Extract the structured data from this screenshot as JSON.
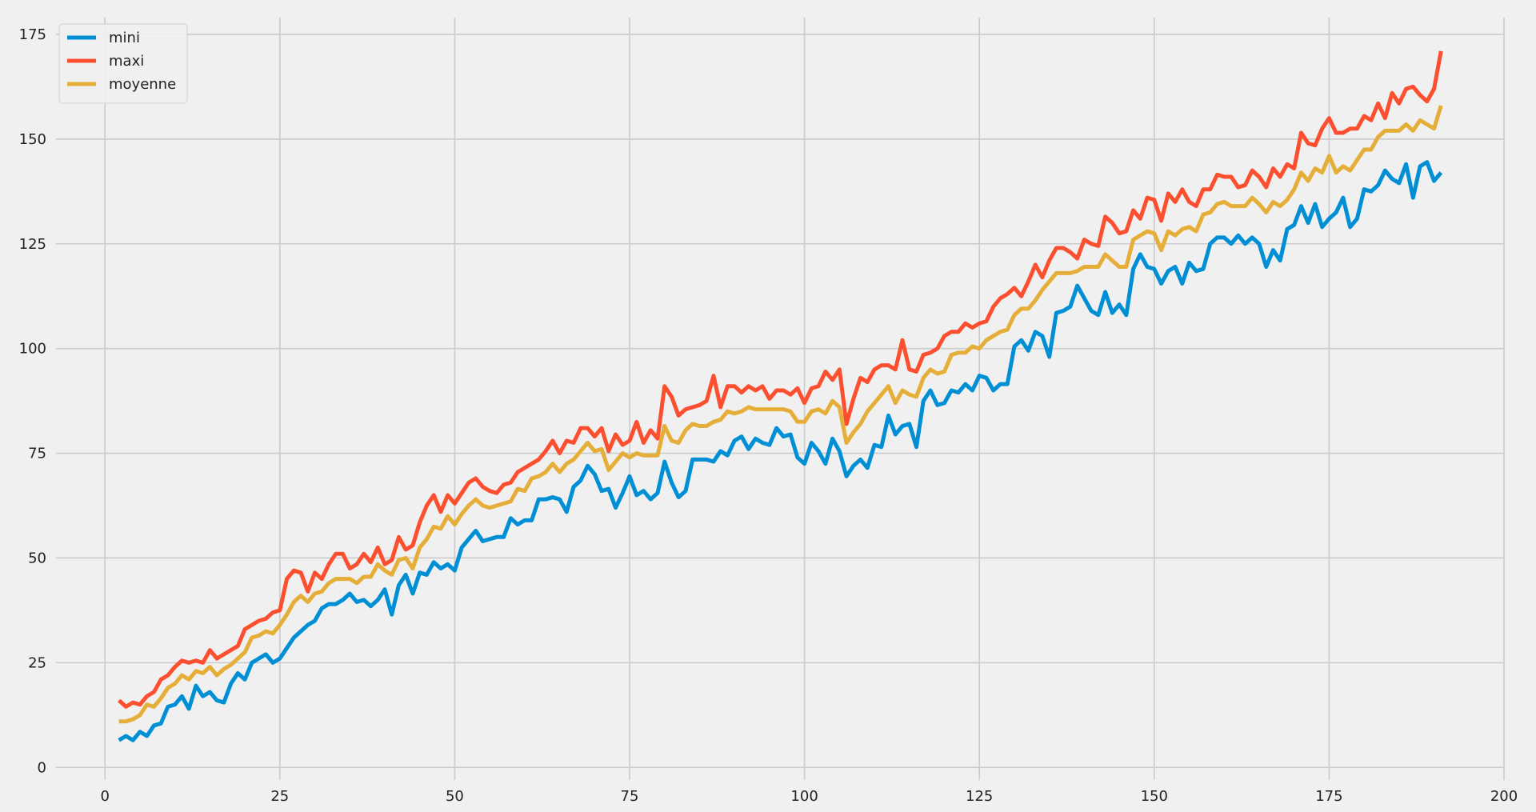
{
  "chart_data": {
    "type": "line",
    "title": "",
    "xlabel": "",
    "ylabel": "",
    "xlim": [
      -7,
      200
    ],
    "ylim": [
      -3,
      179
    ],
    "x_ticks": [
      0,
      25,
      50,
      75,
      100,
      125,
      150,
      175,
      200
    ],
    "y_ticks": [
      0,
      25,
      50,
      75,
      100,
      125,
      150,
      175
    ],
    "grid": true,
    "legend_position": "top-left",
    "x_start": 2,
    "series": [
      {
        "name": "mini",
        "color": "#008fd5",
        "values": [
          6.5,
          7.5,
          6.5,
          8.5,
          7.5,
          10,
          10.5,
          14.5,
          15,
          17,
          14,
          19.5,
          17,
          18,
          16,
          15.5,
          20,
          22.5,
          21,
          25,
          26,
          27,
          25,
          26,
          28.5,
          31,
          32.5,
          34,
          35,
          38,
          39,
          39,
          40,
          41.5,
          39.5,
          40,
          38.5,
          40,
          42.5,
          36.5,
          43.5,
          46,
          41.5,
          46.5,
          46,
          49,
          47.5,
          48.5,
          47,
          52.5,
          54.5,
          56.5,
          54,
          54.5,
          55,
          55,
          59.5,
          58,
          59,
          59,
          64,
          64,
          64.5,
          64,
          61,
          67,
          68.5,
          72,
          70,
          66,
          66.5,
          62,
          65.5,
          69.5,
          65,
          66,
          64,
          65.5,
          73,
          68,
          64.5,
          66,
          73.5,
          73.5,
          73.5,
          73,
          75.5,
          74.5,
          78,
          79,
          76,
          78.5,
          77.5,
          77,
          81,
          79,
          79.5,
          74,
          72.5,
          77.5,
          75.5,
          72.5,
          78.5,
          75.5,
          69.5,
          72,
          73.5,
          71.5,
          77,
          76.5,
          84,
          79.5,
          81.5,
          82,
          76.5,
          87.5,
          90,
          86.5,
          87,
          90,
          89.5,
          91.5,
          90,
          93.5,
          93,
          90,
          91.5,
          91.5,
          100.5,
          102,
          99.5,
          104,
          103,
          98,
          108.5,
          109,
          110,
          115,
          112,
          109,
          108,
          113.5,
          108.5,
          110.5,
          108,
          119,
          122.5,
          119.5,
          119,
          115.5,
          118.5,
          119.5,
          115.5,
          120.5,
          118.5,
          119,
          125,
          126.5,
          126.5,
          125,
          127,
          125,
          126.5,
          125,
          119.5,
          123.5,
          121,
          128.5,
          129.5,
          134,
          130,
          134.5,
          129,
          131,
          132.5,
          136,
          129,
          131,
          138,
          137.5,
          139,
          142.5,
          140.5,
          139.5,
          144,
          136,
          143.5,
          144.5,
          140,
          142
        ]
      },
      {
        "name": "maxi",
        "color": "#fc4f30",
        "values": [
          16,
          14.5,
          15.5,
          15,
          17,
          18,
          21,
          22,
          24,
          25.5,
          25,
          25.5,
          25,
          28,
          26,
          27,
          28,
          29,
          33,
          34,
          35,
          35.5,
          37,
          37.5,
          45,
          47,
          46.5,
          42,
          46.5,
          45,
          48.5,
          51,
          51,
          47.5,
          48.5,
          51,
          49,
          52.5,
          48.5,
          49.5,
          55,
          52,
          53,
          58.5,
          62.5,
          65,
          61,
          65,
          63,
          65.5,
          68,
          69,
          67,
          66,
          65.5,
          67.5,
          68,
          70.5,
          71.5,
          72.5,
          73.5,
          75.5,
          78,
          75,
          78,
          77.5,
          81,
          81,
          79,
          81,
          75.5,
          79.5,
          77,
          78,
          82.5,
          77.5,
          80.5,
          78.5,
          91,
          88.5,
          84,
          85.5,
          86,
          86.5,
          87.5,
          93.5,
          86,
          91,
          91,
          89.5,
          91,
          90,
          91,
          88,
          90,
          90,
          89,
          90.5,
          87,
          90.5,
          91,
          94.5,
          92.5,
          95,
          82,
          88,
          93,
          92,
          95,
          96,
          96,
          95,
          102,
          95,
          94.5,
          98.5,
          99,
          100,
          103,
          104,
          104,
          106,
          105,
          106,
          106.5,
          110,
          112,
          113,
          114.5,
          112.5,
          116,
          120,
          117,
          121,
          124,
          124,
          123,
          121.5,
          126,
          125,
          124.5,
          131.5,
          130,
          127.5,
          128,
          133,
          131,
          136,
          135.5,
          130.5,
          137,
          135,
          138,
          135,
          134,
          138,
          138,
          141.5,
          141,
          141,
          138.5,
          139,
          142.5,
          141,
          138.5,
          143,
          141,
          144,
          143,
          151.5,
          149,
          148.5,
          152.5,
          155,
          151.5,
          151.5,
          152.5,
          152.5,
          155.5,
          154.5,
          158.5,
          155,
          161,
          158.5,
          162,
          162.5,
          160.5,
          159,
          162,
          171
        ]
      },
      {
        "name": "moyenne",
        "color": "#e5ae38",
        "values": [
          11,
          11,
          11.5,
          12.5,
          15,
          14.5,
          16.5,
          19,
          20,
          22,
          21,
          23,
          22.5,
          24,
          22,
          23.5,
          24.5,
          26,
          27.5,
          31,
          31.5,
          32.5,
          32,
          34,
          36.5,
          39.5,
          41,
          39.5,
          41.5,
          42,
          44,
          45,
          45,
          45,
          44,
          45.5,
          45.5,
          48.5,
          47,
          46,
          49.5,
          50,
          47.5,
          52.5,
          54.5,
          57.5,
          57,
          60,
          58,
          60.5,
          62.5,
          64,
          62.5,
          62,
          62.5,
          63,
          63.5,
          66.5,
          66,
          69,
          69.5,
          70.5,
          72.5,
          70.5,
          72.5,
          73.5,
          75.5,
          77.5,
          75.5,
          76,
          71,
          73,
          75,
          74,
          75,
          74.5,
          74.5,
          74.5,
          81.5,
          78,
          77.5,
          80.5,
          82,
          81.5,
          81.5,
          82.5,
          83,
          85,
          84.5,
          85,
          86,
          85.5,
          85.5,
          85.5,
          85.5,
          85.5,
          85,
          82.5,
          82.5,
          85,
          85.5,
          84.5,
          87.5,
          86,
          77.5,
          80,
          82,
          85,
          87,
          89,
          91,
          87,
          90,
          89,
          88.5,
          93,
          95,
          94,
          94.5,
          98.5,
          99,
          99,
          100.5,
          100,
          102,
          103,
          104,
          104.5,
          108,
          109.5,
          109.5,
          111.5,
          114,
          116,
          118,
          118,
          118,
          118.5,
          119.5,
          119.5,
          119.5,
          122.5,
          121,
          119.5,
          119.5,
          126,
          127,
          128,
          127.5,
          123.5,
          128,
          127,
          128.5,
          129,
          128,
          132,
          132.5,
          134.5,
          135,
          134,
          134,
          134,
          136,
          134.5,
          132.5,
          135,
          134,
          135.5,
          138,
          142,
          140,
          143,
          142,
          146,
          142,
          143.5,
          142.5,
          145,
          147.5,
          147.5,
          150.5,
          152,
          152,
          152,
          153.5,
          152,
          154.5,
          153.5,
          152.5,
          158
        ]
      }
    ]
  }
}
